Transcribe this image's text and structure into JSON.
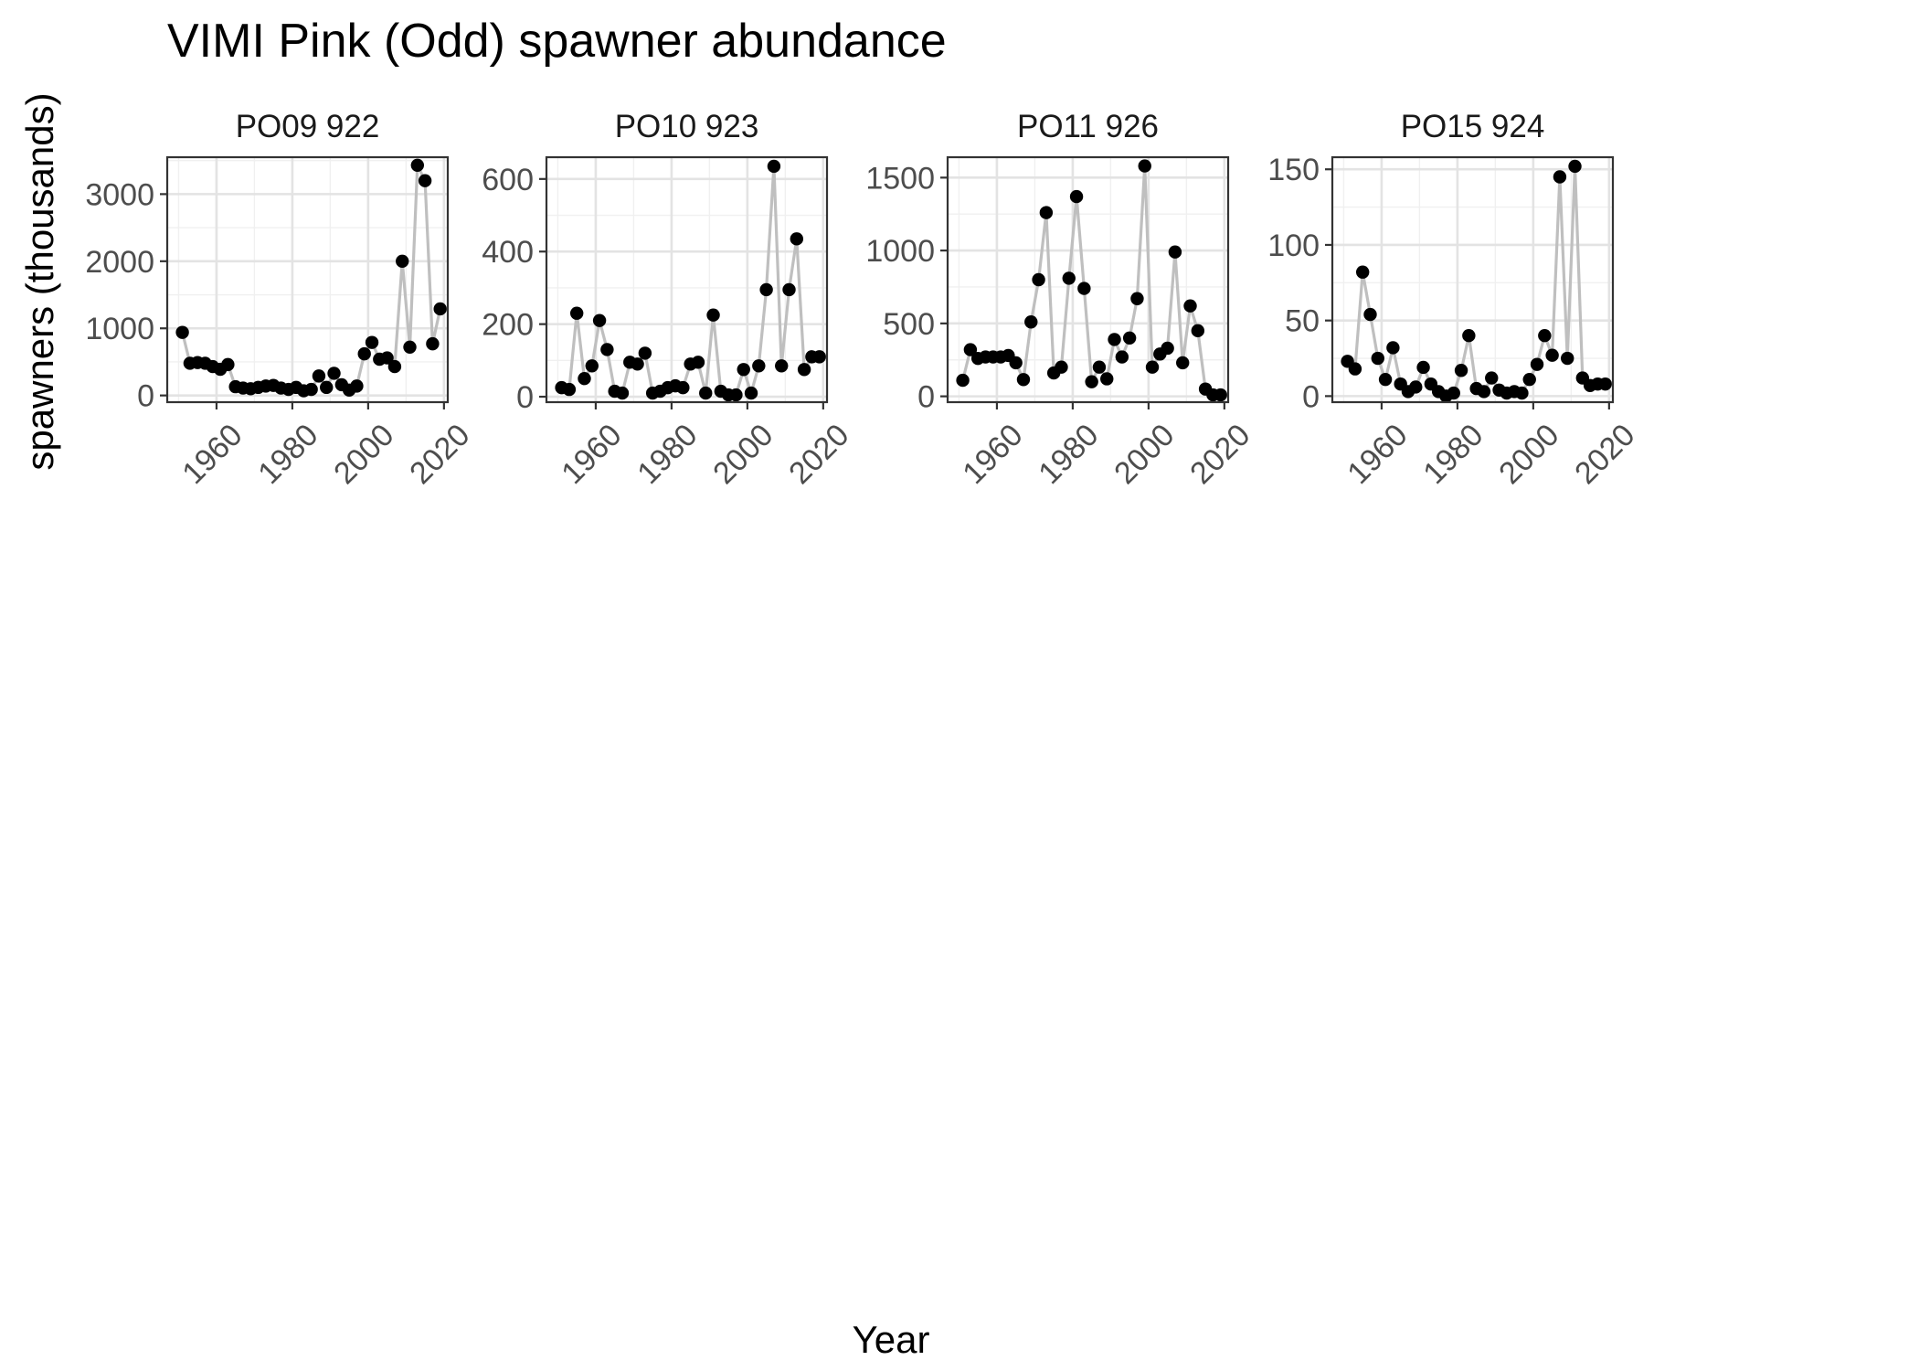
{
  "title": "VIMI Pink (Odd) spawner abundance",
  "xlabel": "Year",
  "ylabel": "spawners (thousands)",
  "colors": {
    "line": "#bfbfbf",
    "point": "#000000",
    "grid": "#e3e3e3",
    "border": "#333333"
  },
  "chart_data": {
    "type": "line",
    "grid": true,
    "legend": "none",
    "xlabel": "Year",
    "ylabel": "spawners (thousands)",
    "panels": [
      {
        "name": "PO09 922",
        "xlim": [
          1947,
          2021
        ],
        "ylim": [
          -100,
          3550
        ],
        "xticks": [
          1960,
          1980,
          2000,
          2020
        ],
        "yticks": [
          0,
          1000,
          2000,
          3000
        ],
        "x": [
          1951,
          1953,
          1955,
          1957,
          1959,
          1961,
          1963,
          1965,
          1967,
          1969,
          1971,
          1973,
          1975,
          1977,
          1979,
          1981,
          1983,
          1985,
          1987,
          1989,
          1991,
          1993,
          1995,
          1997,
          1999,
          2001,
          2003,
          2005,
          2007,
          2009,
          2011,
          2013,
          2015,
          2017,
          2019
        ],
        "y": [
          940,
          480,
          490,
          480,
          430,
          390,
          460,
          130,
          110,
          100,
          120,
          140,
          150,
          110,
          90,
          120,
          70,
          90,
          290,
          120,
          330,
          160,
          80,
          140,
          620,
          790,
          540,
          560,
          430,
          2000,
          720,
          3430,
          3200,
          770,
          1290
        ]
      },
      {
        "name": "PO10 923",
        "xlim": [
          1947,
          2021
        ],
        "ylim": [
          -15,
          660
        ],
        "xticks": [
          1960,
          1980,
          2000,
          2020
        ],
        "yticks": [
          0,
          200,
          400,
          600
        ],
        "x": [
          1951,
          1953,
          1955,
          1957,
          1959,
          1961,
          1963,
          1965,
          1967,
          1969,
          1971,
          1973,
          1975,
          1977,
          1979,
          1981,
          1983,
          1985,
          1987,
          1989,
          1991,
          1993,
          1995,
          1997,
          1999,
          2001,
          2003,
          2005,
          2007,
          2009,
          2011,
          2013,
          2015,
          2017,
          2019
        ],
        "y": [
          25,
          20,
          230,
          50,
          85,
          210,
          130,
          15,
          10,
          95,
          90,
          120,
          10,
          15,
          25,
          30,
          25,
          90,
          95,
          10,
          225,
          15,
          5,
          5,
          75,
          10,
          85,
          295,
          635,
          85,
          295,
          435,
          75,
          110,
          110
        ]
      },
      {
        "name": "PO11 926",
        "xlim": [
          1947,
          2021
        ],
        "ylim": [
          -40,
          1640
        ],
        "xticks": [
          1960,
          1980,
          2000,
          2020
        ],
        "yticks": [
          0,
          500,
          1000,
          1500
        ],
        "x": [
          1951,
          1953,
          1955,
          1957,
          1959,
          1961,
          1963,
          1965,
          1967,
          1969,
          1971,
          1973,
          1975,
          1977,
          1979,
          1981,
          1983,
          1985,
          1987,
          1989,
          1991,
          1993,
          1995,
          1997,
          1999,
          2001,
          2003,
          2005,
          2007,
          2009,
          2011,
          2013,
          2015,
          2017,
          2019
        ],
        "y": [
          110,
          320,
          260,
          270,
          270,
          270,
          280,
          230,
          115,
          510,
          800,
          1260,
          160,
          200,
          810,
          1370,
          740,
          100,
          200,
          120,
          390,
          270,
          400,
          670,
          1580,
          200,
          290,
          330,
          990,
          230,
          620,
          450,
          50,
          10,
          10
        ]
      },
      {
        "name": "PO15 924",
        "xlim": [
          1947,
          2021
        ],
        "ylim": [
          -4,
          158
        ],
        "xticks": [
          1960,
          1980,
          2000,
          2020
        ],
        "yticks": [
          0,
          50,
          100,
          150
        ],
        "x": [
          1951,
          1953,
          1955,
          1957,
          1959,
          1961,
          1963,
          1965,
          1967,
          1969,
          1971,
          1973,
          1975,
          1977,
          1979,
          1981,
          1983,
          1985,
          1987,
          1989,
          1991,
          1993,
          1995,
          1997,
          1999,
          2001,
          2003,
          2005,
          2007,
          2009,
          2011,
          2013,
          2015,
          2017,
          2019
        ],
        "y": [
          23,
          18,
          82,
          54,
          25,
          11,
          32,
          8,
          3,
          6,
          19,
          8,
          3,
          0,
          2,
          17,
          40,
          5,
          3,
          12,
          4,
          2,
          3,
          2,
          11,
          21,
          40,
          27,
          145,
          25,
          152,
          12,
          7,
          8,
          8
        ]
      }
    ]
  }
}
